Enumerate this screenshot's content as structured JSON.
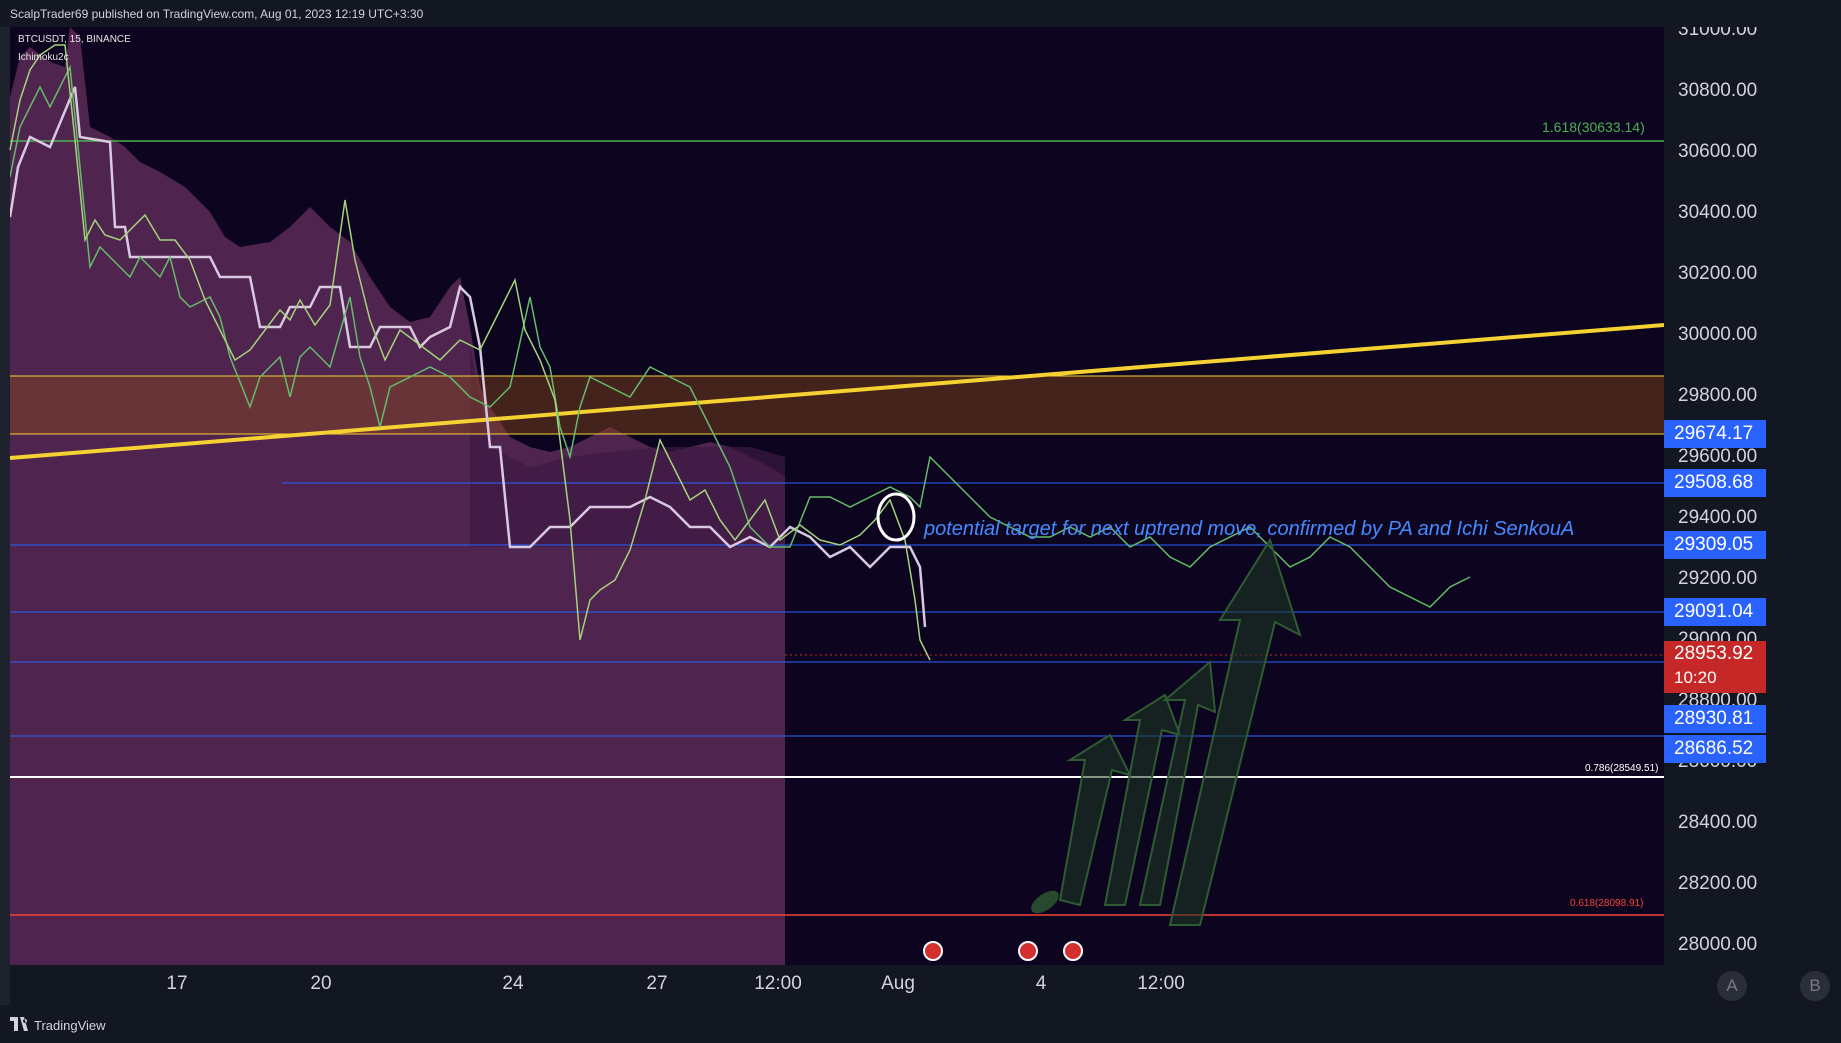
{
  "header": {
    "published": "ScalpTrader69 published on TradingView.com, Aug 01, 2023 12:19 UTC+3:30"
  },
  "legend": {
    "symbol": "BTCUSDT, 15, BINANCE",
    "indicator": "Ichimoku2c"
  },
  "price_axis": {
    "ticks": [
      "31000.00",
      "30800.00",
      "30600.00",
      "30400.00",
      "30200.00",
      "30000.00",
      "29800.00",
      "29600.00",
      "29400.00",
      "29200.00",
      "29000.00",
      "28800.00",
      "28600.00",
      "28400.00",
      "28200.00",
      "28000.00"
    ],
    "price_tags": [
      "29674.17",
      "29508.68",
      "29309.05",
      "29091.04",
      "28930.81",
      "28686.52"
    ],
    "last_price": "28953.92",
    "countdown": "10:20"
  },
  "time_axis": {
    "ticks": [
      "17",
      "20",
      "24",
      "27",
      "12:00",
      "Aug",
      "4",
      "12:00"
    ]
  },
  "fib_labels": {
    "f1618": "1.618(30633.14)",
    "f0786": "0.786(28549.51)",
    "f0618": "0.618(28098.91)"
  },
  "annotation": "potential target for next uptrend move, confirmed by PA and  Ichi SenkouA",
  "scale_buttons": {
    "a": "A",
    "b": "B"
  },
  "footer": {
    "brand": "TradingView"
  },
  "colors": {
    "background": "#0d0520",
    "cloud": "#5c2a58",
    "zone": "#3a2015",
    "trendline": "#f5d232",
    "fib_green": "#4caf50",
    "fib_red": "#f44336",
    "level_blue": "#2962ff",
    "last_price": "#c62828"
  }
}
